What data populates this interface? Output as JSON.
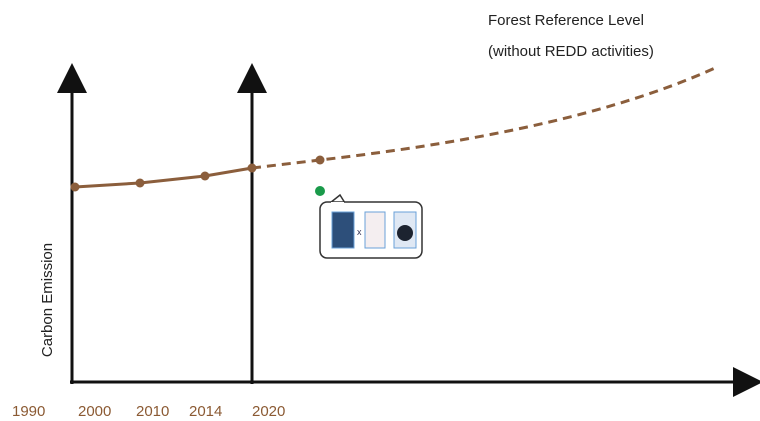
{
  "annotation": {
    "line1": "Forest Reference Level",
    "line2": "(without REDD activities)"
  },
  "y_axis_label": "Carbon Emission",
  "x_labels": [
    "1990",
    "2000",
    "2010",
    "2014",
    "2020"
  ]
}
